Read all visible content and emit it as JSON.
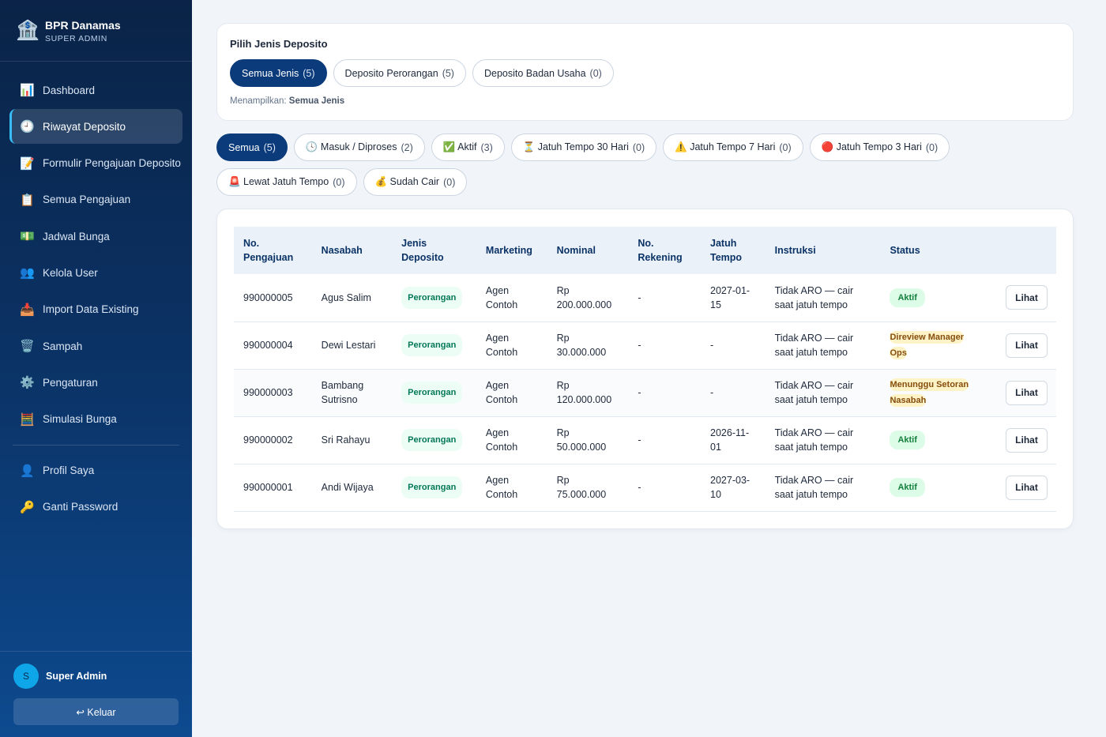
{
  "brand": {
    "name": "BPR Danamas",
    "role": "SUPER ADMIN",
    "icon": "bank-icon"
  },
  "nav": [
    {
      "label": "Dashboard",
      "icon": "📊",
      "active": false
    },
    {
      "label": "Riwayat Deposito",
      "icon": "🕘",
      "active": true
    },
    {
      "label": "Formulir Pengajuan Deposito",
      "icon": "📝",
      "active": false
    },
    {
      "label": "Semua Pengajuan",
      "icon": "📋",
      "active": false
    },
    {
      "label": "Jadwal Bunga",
      "icon": "💵",
      "active": false
    },
    {
      "label": "Kelola User",
      "icon": "👥",
      "active": false
    },
    {
      "label": "Import Data Existing",
      "icon": "📥",
      "active": false
    },
    {
      "label": "Sampah",
      "icon": "🗑️",
      "active": false
    },
    {
      "label": "Pengaturan",
      "icon": "⚙️",
      "active": false
    },
    {
      "label": "Simulasi Bunga",
      "icon": "🧮",
      "active": false
    }
  ],
  "nav_secondary": [
    {
      "label": "Profil Saya",
      "icon": "👤"
    },
    {
      "label": "Ganti Password",
      "icon": "🔑"
    }
  ],
  "user": {
    "initial": "S",
    "name": "Super Admin",
    "logout_label": "↩ Keluar"
  },
  "type_filter": {
    "title": "Pilih Jenis Deposito",
    "options": [
      {
        "label": "Semua Jenis",
        "count": "(5)",
        "active": true
      },
      {
        "label": "Deposito Perorangan",
        "count": "(5)",
        "active": false
      },
      {
        "label": "Deposito Badan Usaha",
        "count": "(0)",
        "active": false
      }
    ],
    "showing_prefix": "Menampilkan:",
    "showing_value": "Semua Jenis"
  },
  "status_filter": [
    {
      "label": "Semua",
      "count": "(5)",
      "active": true
    },
    {
      "label": "🕓 Masuk / Diproses",
      "count": "(2)",
      "active": false
    },
    {
      "label": "✅ Aktif",
      "count": "(3)",
      "active": false
    },
    {
      "label": "⏳ Jatuh Tempo 30 Hari",
      "count": "(0)",
      "active": false
    },
    {
      "label": "⚠️ Jatuh Tempo 7 Hari",
      "count": "(0)",
      "active": false
    },
    {
      "label": "🔴 Jatuh Tempo 3 Hari",
      "count": "(0)",
      "active": false
    },
    {
      "label": "🚨 Lewat Jatuh Tempo",
      "count": "(0)",
      "active": false
    },
    {
      "label": "💰 Sudah Cair",
      "count": "(0)",
      "active": false
    }
  ],
  "table": {
    "headers": [
      [
        "No.",
        "Pengajuan"
      ],
      [
        "Nasabah"
      ],
      [
        "Jenis",
        "Deposito"
      ],
      [
        "Marketing"
      ],
      [
        "Nominal"
      ],
      [
        "No.",
        "Rekening"
      ],
      [
        "Jatuh",
        "Tempo"
      ],
      [
        "Instruksi"
      ],
      [
        "Status"
      ],
      [
        ""
      ]
    ],
    "rows": [
      {
        "no": "990000005",
        "nasabah": [
          "Agus Salim"
        ],
        "jenis": "Perorangan",
        "marketing": [
          "Agen",
          "Contoh"
        ],
        "nominal": [
          "Rp",
          "200.000.000"
        ],
        "rekening": "-",
        "tempo": [
          "2027-01-",
          "15"
        ],
        "instruksi": [
          "Tidak ARO — cair",
          "saat jatuh tempo"
        ],
        "status": "Aktif",
        "status_kind": "aktif",
        "action": "Lihat"
      },
      {
        "no": "990000004",
        "nasabah": [
          "Dewi Lestari"
        ],
        "jenis": "Perorangan",
        "marketing": [
          "Agen",
          "Contoh"
        ],
        "nominal": [
          "Rp",
          "30.000.000"
        ],
        "rekening": "-",
        "tempo": [
          "-"
        ],
        "instruksi": [
          "Tidak ARO — cair",
          "saat jatuh tempo"
        ],
        "status": "Direview Manager Ops",
        "status_kind": "warn",
        "action": "Lihat"
      },
      {
        "no": "990000003",
        "nasabah": [
          "Bambang",
          "Sutrisno"
        ],
        "jenis": "Perorangan",
        "marketing": [
          "Agen",
          "Contoh"
        ],
        "nominal": [
          "Rp",
          "120.000.000"
        ],
        "rekening": "-",
        "tempo": [
          "-"
        ],
        "instruksi": [
          "Tidak ARO — cair",
          "saat jatuh tempo"
        ],
        "status": "Menunggu Setoran Nasabah",
        "status_kind": "warn",
        "action": "Lihat"
      },
      {
        "no": "990000002",
        "nasabah": [
          "Sri Rahayu"
        ],
        "jenis": "Perorangan",
        "marketing": [
          "Agen",
          "Contoh"
        ],
        "nominal": [
          "Rp",
          "50.000.000"
        ],
        "rekening": "-",
        "tempo": [
          "2026-11-",
          "01"
        ],
        "instruksi": [
          "Tidak ARO — cair",
          "saat jatuh tempo"
        ],
        "status": "Aktif",
        "status_kind": "aktif",
        "action": "Lihat"
      },
      {
        "no": "990000001",
        "nasabah": [
          "Andi Wijaya"
        ],
        "jenis": "Perorangan",
        "marketing": [
          "Agen",
          "Contoh"
        ],
        "nominal": [
          "Rp",
          "75.000.000"
        ],
        "rekening": "-",
        "tempo": [
          "2027-03-",
          "10"
        ],
        "instruksi": [
          "Tidak ARO — cair",
          "saat jatuh tempo"
        ],
        "status": "Aktif",
        "status_kind": "aktif",
        "action": "Lihat"
      }
    ]
  }
}
